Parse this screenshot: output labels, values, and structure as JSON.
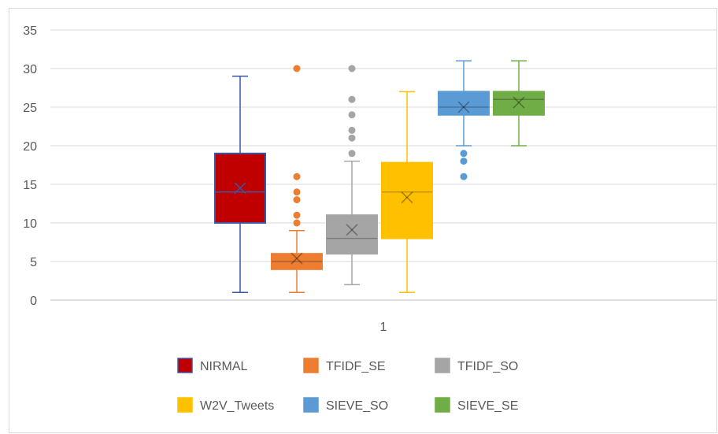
{
  "chart_data": {
    "type": "box",
    "title": "",
    "xlabel": "",
    "ylabel": "",
    "ylim": [
      0,
      35
    ],
    "y_ticks": [
      0,
      5,
      10,
      15,
      20,
      25,
      30,
      35
    ],
    "categories": [
      "1"
    ],
    "grid": true,
    "legend_position": "bottom",
    "series": [
      {
        "name": "NIRMAL",
        "color": "#c00000",
        "edge_color": "#3a57a6",
        "min": 1,
        "q1": 10,
        "median": 14,
        "q3": 19,
        "max": 29,
        "mean": 14.5,
        "outliers": []
      },
      {
        "name": "TFIDF_SE",
        "color": "#ed7d31",
        "edge_color": "#ed7d31",
        "min": 1,
        "q1": 4,
        "median": 5,
        "q3": 6,
        "max": 9,
        "mean": 5.4,
        "outliers": [
          10,
          11,
          13,
          14,
          16,
          30
        ]
      },
      {
        "name": "TFIDF_SO",
        "color": "#a5a5a5",
        "edge_color": "#a5a5a5",
        "min": 2,
        "q1": 6,
        "median": 8,
        "q3": 11,
        "max": 18,
        "mean": 9.1,
        "outliers": [
          19,
          21,
          22,
          24,
          26,
          30
        ]
      },
      {
        "name": "W2V_Tweets",
        "color": "#ffc000",
        "edge_color": "#ffc000",
        "min": 1,
        "q1": 8,
        "median": 14,
        "q3": 17.8,
        "max": 27,
        "mean": 13.3,
        "outliers": []
      },
      {
        "name": "SIEVE_SO",
        "color": "#5b9bd5",
        "edge_color": "#5b9bd5",
        "min": 20,
        "q1": 24,
        "median": 25,
        "q3": 27,
        "max": 31,
        "mean": 25,
        "outliers": [
          16,
          18,
          19
        ]
      },
      {
        "name": "SIEVE_SE",
        "color": "#70ad47",
        "edge_color": "#70ad47",
        "min": 20,
        "q1": 24,
        "median": 26,
        "q3": 27,
        "max": 31,
        "mean": 25.6,
        "outliers": []
      }
    ]
  }
}
